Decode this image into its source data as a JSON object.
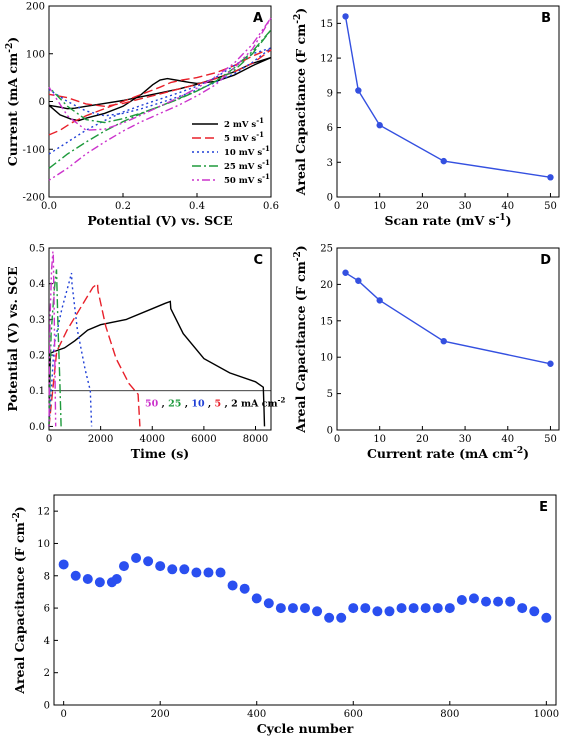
{
  "chart_data": [
    {
      "panel": "A",
      "type": "line",
      "xlabel": "Potential (V) vs. SCE",
      "ylabel": "Current (mA cm",
      "ylabel_sup": "-2",
      "ylabel_tail": ")",
      "xlim": [
        0.0,
        0.6
      ],
      "ylim": [
        -200,
        200
      ],
      "xticks": [
        "0.0",
        "0.2",
        "0.4",
        "0.6"
      ],
      "xtick_values": [
        0.0,
        0.2,
        0.4,
        0.6
      ],
      "yticks": [
        "-200",
        "-100",
        "0",
        "100",
        "200"
      ],
      "ytick_values": [
        -200,
        -100,
        0,
        100,
        200
      ],
      "legend_position": "bottom-right",
      "series": [
        {
          "name": "2 mV s",
          "sup": "-1",
          "color": "#000000",
          "dash": "",
          "x": [
            0.0,
            0.03,
            0.06,
            0.08,
            0.1,
            0.15,
            0.2,
            0.25,
            0.28,
            0.3,
            0.32,
            0.35,
            0.38,
            0.4,
            0.45,
            0.5,
            0.55,
            0.6,
            0.55,
            0.5,
            0.45,
            0.4,
            0.35,
            0.3,
            0.25,
            0.2,
            0.15,
            0.1,
            0.07,
            0.05,
            0.03,
            0.0
          ],
          "y": [
            -8,
            -28,
            -37,
            -40,
            -35,
            -25,
            -10,
            15,
            35,
            45,
            48,
            44,
            40,
            38,
            42,
            55,
            75,
            92,
            80,
            62,
            48,
            36,
            26,
            18,
            10,
            2,
            -4,
            -10,
            -14,
            -15,
            -12,
            -8
          ]
        },
        {
          "name": "5 mV s",
          "sup": "-1",
          "color": "#e8202a",
          "dash": "9,4",
          "x": [
            0.0,
            0.03,
            0.06,
            0.1,
            0.15,
            0.2,
            0.25,
            0.3,
            0.33,
            0.36,
            0.4,
            0.45,
            0.5,
            0.55,
            0.58,
            0.6,
            0.55,
            0.5,
            0.45,
            0.4,
            0.35,
            0.3,
            0.25,
            0.2,
            0.15,
            0.1,
            0.05,
            0.0
          ],
          "y": [
            -70,
            -60,
            -45,
            -30,
            -15,
            0,
            15,
            30,
            40,
            45,
            50,
            60,
            75,
            95,
            105,
            108,
            80,
            62,
            48,
            36,
            26,
            16,
            6,
            -4,
            -10,
            -5,
            8,
            15
          ]
        },
        {
          "name": "10 mV s",
          "sup": "-1",
          "color": "#1f3fd6",
          "dash": "2,3",
          "x": [
            0.0,
            0.05,
            0.1,
            0.15,
            0.2,
            0.25,
            0.3,
            0.35,
            0.4,
            0.45,
            0.5,
            0.55,
            0.6,
            0.55,
            0.5,
            0.45,
            0.4,
            0.35,
            0.3,
            0.25,
            0.2,
            0.15,
            0.1,
            0.05,
            0.0
          ],
          "y": [
            -110,
            -85,
            -60,
            -40,
            -22,
            -8,
            5,
            18,
            32,
            50,
            75,
            100,
            112,
            82,
            58,
            40,
            24,
            10,
            -3,
            -15,
            -25,
            -30,
            -20,
            0,
            25
          ]
        },
        {
          "name": "25 mV s",
          "sup": "-1",
          "color": "#1e9a3c",
          "dash": "9,3,2,3",
          "x": [
            0.0,
            0.05,
            0.1,
            0.15,
            0.2,
            0.25,
            0.3,
            0.35,
            0.4,
            0.45,
            0.5,
            0.55,
            0.6,
            0.55,
            0.5,
            0.45,
            0.4,
            0.35,
            0.3,
            0.25,
            0.2,
            0.15,
            0.1,
            0.05,
            0.0
          ],
          "y": [
            -140,
            -110,
            -85,
            -62,
            -42,
            -25,
            -10,
            5,
            22,
            42,
            70,
            105,
            150,
            100,
            65,
            42,
            22,
            6,
            -10,
            -24,
            -36,
            -44,
            -38,
            -10,
            30
          ]
        },
        {
          "name": "50 mV s",
          "sup": "-1",
          "color": "#cc33cc",
          "dash": "2,3,2,3,8,3",
          "x": [
            0.0,
            0.05,
            0.1,
            0.15,
            0.2,
            0.25,
            0.3,
            0.35,
            0.4,
            0.45,
            0.5,
            0.55,
            0.6,
            0.55,
            0.5,
            0.45,
            0.4,
            0.35,
            0.3,
            0.25,
            0.2,
            0.15,
            0.1,
            0.05,
            0.0
          ],
          "y": [
            -165,
            -140,
            -110,
            -85,
            -62,
            -42,
            -25,
            -8,
            12,
            35,
            70,
            110,
            175,
            120,
            80,
            52,
            28,
            8,
            -10,
            -28,
            -45,
            -58,
            -60,
            -30,
            30
          ]
        }
      ]
    },
    {
      "panel": "B",
      "type": "line",
      "xlabel": "Scan rate (mV s",
      "xlabel_sup": "-1",
      "xlabel_tail": ")",
      "ylabel": "Areal Capacitance (F cm",
      "ylabel_sup": "-2",
      "ylabel_tail": ")",
      "xlim": [
        0,
        52
      ],
      "ylim": [
        0,
        16.5
      ],
      "xticks": [
        "0",
        "10",
        "20",
        "30",
        "40",
        "50"
      ],
      "xtick_values": [
        0,
        10,
        20,
        30,
        40,
        50
      ],
      "yticks": [
        "0",
        "3",
        "6",
        "9",
        "12",
        "15"
      ],
      "ytick_values": [
        0,
        3,
        6,
        9,
        12,
        15
      ],
      "series": [
        {
          "color": "#3450e0",
          "x": [
            2,
            5,
            10,
            25,
            50
          ],
          "y": [
            15.6,
            9.2,
            6.2,
            3.1,
            1.7
          ]
        }
      ]
    },
    {
      "panel": "C",
      "type": "line",
      "xlabel": "Time (s)",
      "ylabel": "Potential (V) vs. SCE",
      "xlim": [
        0,
        8600
      ],
      "ylim": [
        -0.01,
        0.5
      ],
      "xticks": [
        "0",
        "2000",
        "4000",
        "6000",
        "8000"
      ],
      "xtick_values": [
        0,
        2000,
        4000,
        6000,
        8000
      ],
      "yticks": [
        "0.0",
        "0.1",
        "0.2",
        "0.3",
        "0.4",
        "0.5"
      ],
      "ytick_values": [
        0.0,
        0.1,
        0.2,
        0.3,
        0.4,
        0.5
      ],
      "reference_line_y": 0.1,
      "annotation": {
        "parts": [
          "50",
          " , ",
          "25",
          " , ",
          "10",
          " , ",
          "5",
          " , 2 mA cm"
        ],
        "sup": "-2",
        "colors": [
          "#cc33cc",
          "#000000",
          "#1e9a3c",
          "#000000",
          "#1f3fd6",
          "#000000",
          "#e8202a",
          "#000000"
        ]
      },
      "series": [
        {
          "color": "#000000",
          "dash": "",
          "x": [
            0,
            50,
            200,
            600,
            1000,
            1500,
            2000,
            3000,
            4000,
            4500,
            4700,
            4720,
            5200,
            6000,
            7000,
            8000,
            8300,
            8330,
            8350
          ],
          "y": [
            0.0,
            0.205,
            0.21,
            0.22,
            0.24,
            0.27,
            0.285,
            0.3,
            0.33,
            0.345,
            0.35,
            0.33,
            0.26,
            0.19,
            0.15,
            0.125,
            0.11,
            0.05,
            0.0
          ]
        },
        {
          "color": "#e8202a",
          "dash": "9,4",
          "x": [
            0,
            300,
            700,
            1200,
            1700,
            1880,
            1900,
            2200,
            2600,
            3100,
            3450,
            3520
          ],
          "y": [
            0.0,
            0.21,
            0.27,
            0.33,
            0.39,
            0.4,
            0.38,
            0.28,
            0.19,
            0.12,
            0.09,
            0.0
          ]
        },
        {
          "color": "#1f3fd6",
          "dash": "2,3",
          "x": [
            0,
            200,
            500,
            800,
            870,
            890,
            1100,
            1400,
            1600,
            1650
          ],
          "y": [
            0.0,
            0.23,
            0.33,
            0.41,
            0.43,
            0.4,
            0.27,
            0.16,
            0.1,
            0.0
          ]
        },
        {
          "color": "#1e9a3c",
          "dash": "9,3,2,3",
          "x": [
            0,
            80,
            200,
            290,
            300,
            350,
            420,
            470
          ],
          "y": [
            0.0,
            0.26,
            0.38,
            0.44,
            0.42,
            0.28,
            0.13,
            0.0
          ]
        },
        {
          "color": "#cc33cc",
          "dash": "2,3,2,3,8,3",
          "x": [
            0,
            40,
            100,
            150,
            165,
            200,
            240,
            260
          ],
          "y": [
            0.0,
            0.3,
            0.44,
            0.49,
            0.48,
            0.32,
            0.1,
            0.0
          ]
        }
      ]
    },
    {
      "panel": "D",
      "type": "line",
      "xlabel": "Current rate (mA cm",
      "xlabel_sup": "-2",
      "xlabel_tail": ")",
      "ylabel": "Areal Capacitance (F cm",
      "ylabel_sup": "-2",
      "ylabel_tail": ")",
      "xlim": [
        0,
        52
      ],
      "ylim": [
        0,
        25
      ],
      "xticks": [
        "0",
        "10",
        "20",
        "30",
        "40",
        "50"
      ],
      "xtick_values": [
        0,
        10,
        20,
        30,
        40,
        50
      ],
      "yticks": [
        "0",
        "5",
        "10",
        "15",
        "20",
        "25"
      ],
      "ytick_values": [
        0,
        5,
        10,
        15,
        20,
        25
      ],
      "series": [
        {
          "color": "#3450e0",
          "x": [
            2,
            5,
            10,
            25,
            50
          ],
          "y": [
            21.6,
            20.5,
            17.8,
            12.2,
            9.1
          ]
        }
      ]
    },
    {
      "panel": "E",
      "type": "scatter",
      "xlabel": "Cycle number",
      "ylabel": "Areal Capacitance (F cm",
      "ylabel_sup": "-2",
      "ylabel_tail": ")",
      "xlim": [
        -20,
        1020
      ],
      "ylim": [
        0,
        13
      ],
      "xticks": [
        "0",
        "200",
        "400",
        "600",
        "800",
        "1000"
      ],
      "xtick_values": [
        0,
        200,
        400,
        600,
        800,
        1000
      ],
      "yticks": [
        "0",
        "2",
        "4",
        "6",
        "8",
        "10",
        "12"
      ],
      "ytick_values": [
        0,
        2,
        4,
        6,
        8,
        10,
        12
      ],
      "series": [
        {
          "color": "#2a4ff0",
          "x": [
            0,
            25,
            50,
            75,
            100,
            110,
            125,
            150,
            175,
            200,
            225,
            250,
            275,
            300,
            325,
            350,
            375,
            400,
            425,
            450,
            475,
            500,
            525,
            550,
            575,
            600,
            625,
            650,
            675,
            700,
            725,
            750,
            775,
            800,
            825,
            850,
            875,
            900,
            925,
            950,
            975,
            1000
          ],
          "y": [
            8.7,
            8.0,
            7.8,
            7.6,
            7.6,
            7.8,
            8.6,
            9.1,
            8.9,
            8.6,
            8.4,
            8.4,
            8.2,
            8.2,
            8.2,
            7.4,
            7.2,
            6.6,
            6.3,
            6.0,
            6.0,
            6.0,
            5.8,
            5.4,
            5.4,
            6.0,
            6.0,
            5.8,
            5.8,
            6.0,
            6.0,
            6.0,
            6.0,
            6.0,
            6.5,
            6.6,
            6.4,
            6.4,
            6.4,
            6.0,
            5.8,
            5.4
          ]
        }
      ]
    }
  ]
}
